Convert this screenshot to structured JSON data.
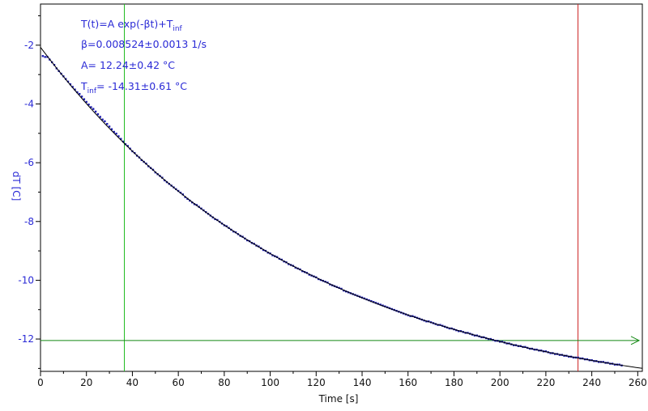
{
  "chart_data": {
    "type": "scatter",
    "xlabel": "Time [s]",
    "ylabel": "dT [C]",
    "xlim": [
      0,
      262
    ],
    "ylim": [
      -13.1,
      -0.6
    ],
    "x_ticks": [
      0,
      20,
      40,
      60,
      80,
      100,
      120,
      140,
      160,
      180,
      200,
      220,
      240,
      260
    ],
    "y_ticks": [
      -2,
      -4,
      -6,
      -8,
      -10,
      -12
    ],
    "grid": false,
    "annotations": {
      "formula_prefix": "T(t)=A exp(-βt)+T",
      "formula_sub": "inf",
      "beta": "β=0.008524±0.0013 1/s",
      "amplitude": "A= 12.24±0.42 °C",
      "tinf_prefix": "T",
      "tinf_sub": "inf",
      "tinf_value": "= -14.31±0.61 °C"
    },
    "series": [
      {
        "role": "measured",
        "color": "#1a1ab0",
        "x_start": 1,
        "x_end": 253,
        "x_step": 1,
        "model": {
          "A": 12.24,
          "beta": 0.008524,
          "Tinf": -14.31
        }
      },
      {
        "role": "fit",
        "color": "#000000",
        "x_start": 0,
        "x_end": 262,
        "model": {
          "A": 12.24,
          "beta": 0.008524,
          "Tinf": -14.31
        }
      }
    ],
    "markers": {
      "vertical_green": {
        "x": 36.5,
        "color": "#22bb22"
      },
      "vertical_red": {
        "x": 234,
        "color": "#cc2222"
      },
      "horizontal_green": {
        "y": -12.05,
        "color": "#118811"
      }
    }
  }
}
